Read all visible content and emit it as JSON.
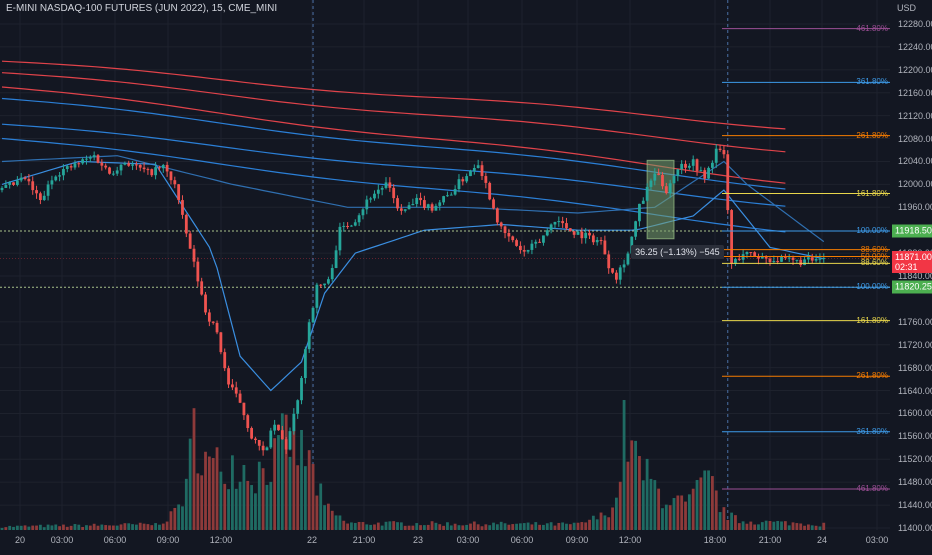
{
  "header": {
    "title": "E-MINI NASDAQ-100 FUTURES (JUN 2022), 15, CME_MINI",
    "currency": "USD"
  },
  "price_axis": {
    "labels": [
      "12280.00",
      "12240.00",
      "12200.00",
      "12160.00",
      "12120.00",
      "12080.00",
      "12040.00",
      "12000.00",
      "11960.00",
      "11880.00",
      "11840.00",
      "11760.00",
      "11720.00",
      "11680.00",
      "11640.00",
      "11600.00",
      "11560.00",
      "11520.00",
      "11480.00",
      "11440.00",
      "11400.00"
    ]
  },
  "time_axis": {
    "labels": [
      "20",
      "03:00",
      "06:00",
      "09:00",
      "12:00",
      "22",
      "21:00",
      "23",
      "03:00",
      "06:00",
      "09:00",
      "12:00",
      "18:00",
      "21:00",
      "24",
      "03:00"
    ]
  },
  "price_tags": {
    "upper": "11918.50",
    "current": "11871.00",
    "countdown": "02:31",
    "lower": "11820.25"
  },
  "fib_labels": [
    "461.80%",
    "361.80%",
    "261.80%",
    "161.80%",
    "100.00%",
    "88.60%",
    "50.00%",
    "88.60%",
    "100.00%",
    "161.80%",
    "261.80%",
    "361.80%",
    "461.80%"
  ],
  "measure": {
    "label": "36.25 (−1.13%) −545"
  },
  "colors": {
    "background": "#131722",
    "up": "#26a69a",
    "down": "#ef5350",
    "red_band": "#e0434a",
    "blue_band": "#2b7fd6",
    "fib_purple": "#9c4f96",
    "fib_blue": "#3d9be9",
    "fib_orange": "#f57c00",
    "fib_yellow": "#e8d64b",
    "tag_green": "#4caf50",
    "tag_red": "#f23645"
  },
  "chart_data": {
    "type": "candlestick",
    "instrument": "E-MINI NASDAQ-100 FUTURES (JUN 2022)",
    "interval": "15",
    "ylim": [
      11400,
      12300
    ],
    "y_ticks": [
      11400,
      11440,
      11480,
      11520,
      11560,
      11600,
      11640,
      11680,
      11720,
      11760,
      11840,
      11880,
      11960,
      12000,
      12040,
      12080,
      12120,
      12160,
      12200,
      12240,
      12280
    ],
    "anchors": [
      [
        0,
        11990
      ],
      [
        6,
        12010
      ],
      [
        10,
        11970
      ],
      [
        14,
        12020
      ],
      [
        18,
        12030
      ],
      [
        24,
        12050
      ],
      [
        28,
        12020
      ],
      [
        32,
        12040
      ],
      [
        38,
        12020
      ],
      [
        42,
        12030
      ],
      [
        45,
        12000
      ],
      [
        47,
        11940
      ],
      [
        50,
        11860
      ],
      [
        53,
        11780
      ],
      [
        56,
        11740
      ],
      [
        59,
        11650
      ],
      [
        62,
        11620
      ],
      [
        65,
        11560
      ],
      [
        68,
        11530
      ],
      [
        71,
        11580
      ],
      [
        74,
        11540
      ],
      [
        77,
        11620
      ],
      [
        80,
        11760
      ],
      [
        82,
        11820
      ],
      [
        85,
        11830
      ],
      [
        88,
        11920
      ],
      [
        92,
        11940
      ],
      [
        96,
        11980
      ],
      [
        100,
        12000
      ],
      [
        104,
        11950
      ],
      [
        108,
        11970
      ],
      [
        112,
        11960
      ],
      [
        116,
        11980
      ],
      [
        120,
        12010
      ],
      [
        124,
        12040
      ],
      [
        127,
        11980
      ],
      [
        130,
        11920
      ],
      [
        133,
        11900
      ],
      [
        136,
        11880
      ],
      [
        140,
        11900
      ],
      [
        144,
        11940
      ],
      [
        148,
        11920
      ],
      [
        152,
        11910
      ],
      [
        156,
        11900
      ],
      [
        158,
        11860
      ],
      [
        160,
        11840
      ],
      [
        163,
        11880
      ],
      [
        166,
        11960
      ],
      [
        170,
        12020
      ],
      [
        173,
        11990
      ],
      [
        176,
        12030
      ],
      [
        180,
        12040
      ],
      [
        183,
        12010
      ],
      [
        186,
        12060
      ],
      [
        188,
        12050
      ],
      [
        190,
        11860
      ],
      [
        193,
        11880
      ],
      [
        200,
        11870
      ],
      [
        207,
        11865
      ],
      [
        214,
        11868
      ]
    ],
    "volume_profile": [
      [
        0,
        0.03
      ],
      [
        40,
        0.05
      ],
      [
        44,
        0.12
      ],
      [
        48,
        0.35
      ],
      [
        50,
        0.9
      ],
      [
        54,
        0.55
      ],
      [
        60,
        0.6
      ],
      [
        66,
        0.5
      ],
      [
        72,
        0.65
      ],
      [
        74,
        0.85
      ],
      [
        80,
        0.6
      ],
      [
        84,
        0.2
      ],
      [
        90,
        0.06
      ],
      [
        150,
        0.05
      ],
      [
        156,
        0.12
      ],
      [
        160,
        0.25
      ],
      [
        162,
        0.9
      ],
      [
        166,
        0.55
      ],
      [
        172,
        0.3
      ],
      [
        178,
        0.22
      ],
      [
        184,
        0.45
      ],
      [
        188,
        0.15
      ],
      [
        192,
        0.08
      ],
      [
        214,
        0.05
      ]
    ],
    "bands": {
      "red": [
        {
          "at_start": 12215,
          "at_end": 12100
        },
        {
          "at_start": 12195,
          "at_end": 12060
        },
        {
          "at_start": 12170,
          "at_end": 12005
        }
      ],
      "blue": [
        {
          "at_start": 12150,
          "at_end": 11995
        },
        {
          "at_start": 12105,
          "at_end": 11965
        },
        {
          "at_start": 12080,
          "at_end": 11920
        }
      ]
    },
    "vwap": [
      [
        0,
        12000
      ],
      [
        20,
        12040
      ],
      [
        40,
        12035
      ],
      [
        55,
        11880
      ],
      [
        62,
        11700
      ],
      [
        70,
        11640
      ],
      [
        78,
        11690
      ],
      [
        84,
        11810
      ],
      [
        92,
        11880
      ],
      [
        110,
        11920
      ],
      [
        130,
        11930
      ],
      [
        150,
        11920
      ],
      [
        165,
        11920
      ],
      [
        180,
        11945
      ],
      [
        188,
        11990
      ],
      [
        194,
        11940
      ],
      [
        200,
        11890
      ],
      [
        214,
        11870
      ]
    ],
    "vwap_band": [
      [
        0,
        12040
      ],
      [
        30,
        12050
      ],
      [
        60,
        12000
      ],
      [
        90,
        11960
      ],
      [
        120,
        11960
      ],
      [
        150,
        11950
      ],
      [
        170,
        11960
      ],
      [
        188,
        12040
      ],
      [
        194,
        12000
      ],
      [
        214,
        11900
      ]
    ],
    "dotted_levels": [
      11918.5,
      11820.25
    ],
    "current_price": 11871.0,
    "session_breaks_index": [
      81,
      189
    ],
    "fib_levels": [
      {
        "label": "461.80%",
        "price": 12272,
        "color": "fib_purple"
      },
      {
        "label": "361.80%",
        "price": 12178,
        "color": "fib_blue"
      },
      {
        "label": "261.80%",
        "price": 12085,
        "color": "fib_orange"
      },
      {
        "label": "161.80%",
        "price": 11984,
        "color": "fib_yellow"
      },
      {
        "label": "100.00%",
        "price": 11918.5,
        "color": "fib_blue"
      },
      {
        "label": "88.60%",
        "price": 11886,
        "color": "fib_orange"
      },
      {
        "label": "50.00%",
        "price": 11874,
        "color": "fib_orange"
      },
      {
        "label": "88.60%",
        "price": 11862,
        "color": "fib_yellow"
      },
      {
        "label": "100.00%",
        "price": 11820.25,
        "color": "fib_blue"
      },
      {
        "label": "161.80%",
        "price": 11762,
        "color": "fib_yellow"
      },
      {
        "label": "261.80%",
        "price": 11665,
        "color": "fib_orange"
      },
      {
        "label": "361.80%",
        "price": 11568,
        "color": "fib_blue"
      },
      {
        "label": "461.80%",
        "price": 11468,
        "color": "fib_purple"
      }
    ],
    "measure_box": {
      "from_index": 168,
      "to_index": 175,
      "price_high": 12042,
      "price_low": 11905
    }
  }
}
